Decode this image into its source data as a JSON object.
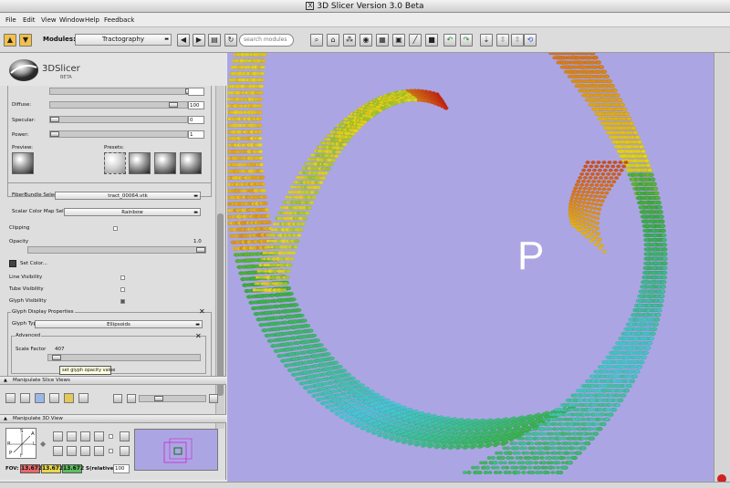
{
  "window": {
    "title": "3D Slicer Version 3.0 Beta"
  },
  "menu": [
    "File",
    "Edit",
    "View",
    "Window",
    "Help",
    "Feedback"
  ],
  "toolbar": {
    "modules_label": "Modules:",
    "module_selected": "Tractography",
    "search_placeholder": "search modules"
  },
  "logo": {
    "name": "3DSlicer",
    "sub": "BETA"
  },
  "material": {
    "diffuse_label": "Diffuse:",
    "diffuse_value": "100",
    "specular_label": "Specular:",
    "specular_value": "0",
    "power_label": "Power:",
    "power_value": "1",
    "preview_label": "Preview:",
    "presets_label": "Presets:"
  },
  "fiber": {
    "bundle_label": "FiberBundle Select:",
    "bundle_value": "tract_00064.vtk",
    "colormap_label": "Scalar Color Map Select:",
    "colormap_value": "Rainbow",
    "clipping_label": "Clipping",
    "opacity_label": "Opacity",
    "opacity_value": "1.0",
    "set_color_label": "Set Color...",
    "line_vis_label": "Line Visibility",
    "tube_vis_label": "Tube Visibility",
    "glyph_vis_label": "Glyph Visibility"
  },
  "glyph": {
    "section_label": "Glyph Display Properties",
    "type_label": "Glyph Type",
    "type_value": "Ellipsoids",
    "advanced_label": "Advanced",
    "scale_label": "Scale Factor",
    "scale_value": "407"
  },
  "tooltip": "set glyph opacity value",
  "slice_views": {
    "label": "Manipulate Slice Views"
  },
  "view3d_panel": {
    "label": "Manipulate 3D View",
    "fov_label": "FOV:",
    "fov_values": [
      "13.672",
      "13.672",
      "13.672"
    ],
    "s_label": "S(relative):",
    "s_value": "100",
    "compass": {
      "top": "S",
      "left": "R",
      "right": "L",
      "bottom": "I",
      "anterior": "A",
      "posterior": "P"
    }
  },
  "view3d": {
    "orientation_letter": "P",
    "background": "#aba6e3"
  }
}
